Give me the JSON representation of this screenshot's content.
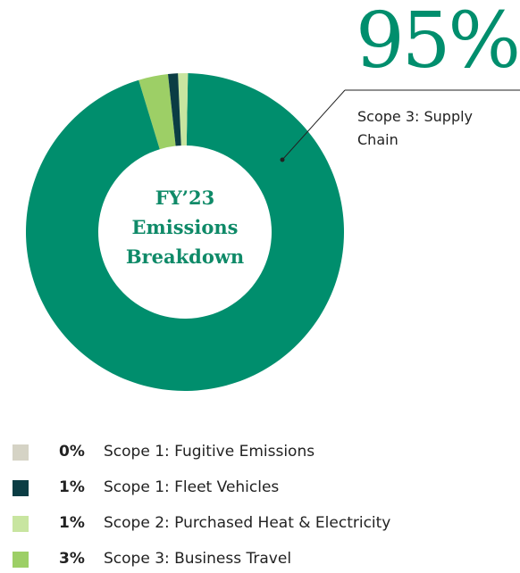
{
  "chart_data": {
    "type": "donut",
    "center_label": "FY’23 Emissions Breakdown",
    "categories": [
      "Scope 1: Fugitive Emissions",
      "Scope 1: Fleet Vehicles",
      "Scope 2: Purchased Heat & Electricity",
      "Scope 3: Business Travel",
      "Scope 3: Supply Chain"
    ],
    "values": [
      0,
      1,
      1,
      3,
      95
    ],
    "value_labels": [
      "0%",
      "1%",
      "1%",
      "3%",
      "95%"
    ],
    "colors": [
      "#d5d3c5",
      "#0b3d44",
      "#c8e5a0",
      "#9dcf66",
      "#008e6d"
    ]
  }
}
